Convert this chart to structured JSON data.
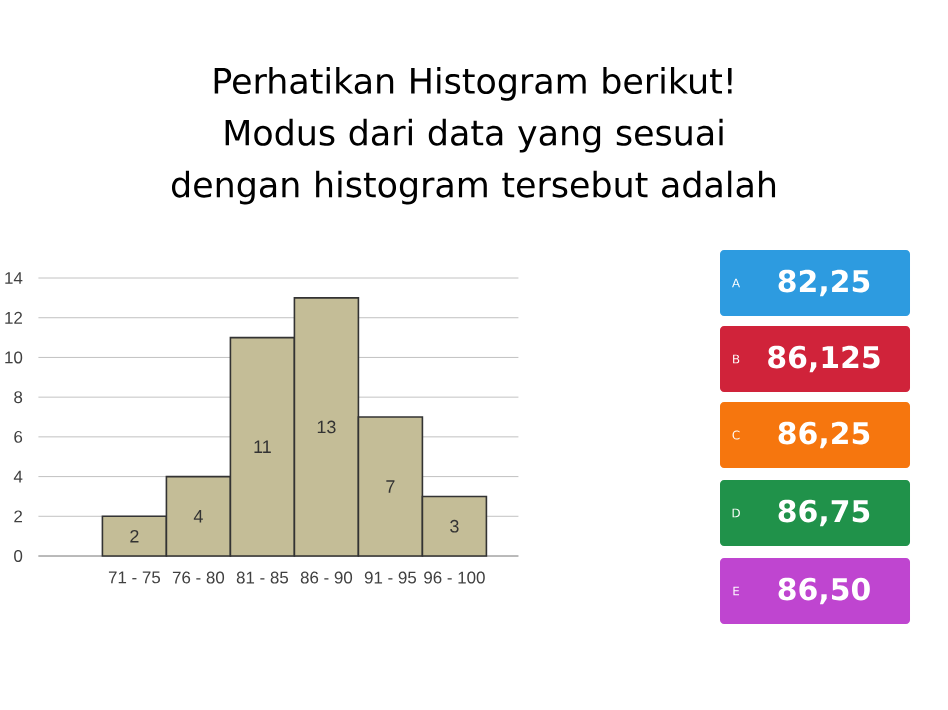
{
  "chart_data": [
    {
      "type": "bar",
      "title": "Perhatikan Histogram berikut! Modus dari data yang sesuai dengan histogram tersebut adalah",
      "categories": [
        "71 - 75",
        "76 - 80",
        "81 - 85",
        "86 - 90",
        "91 - 95",
        "96 - 100"
      ],
      "values": [
        2,
        4,
        11,
        13,
        7,
        3
      ],
      "color": "#c4bd97",
      "ylim": [
        0,
        14
      ],
      "yticks": [
        0,
        2,
        4,
        6,
        8,
        10,
        12,
        14
      ],
      "grid": "y",
      "data_labels": true
    },
    {
      "type": "other",
      "categories": [
        "A",
        "B",
        "C",
        "D",
        "E"
      ],
      "annotations": [
        "82,25",
        "86,125",
        "86,25",
        "86,75",
        "86,50"
      ],
      "colors": [
        "#2d9be0",
        "#d0233a",
        "#f6760e",
        "#20924a",
        "#bf45d0"
      ]
    }
  ]
}
